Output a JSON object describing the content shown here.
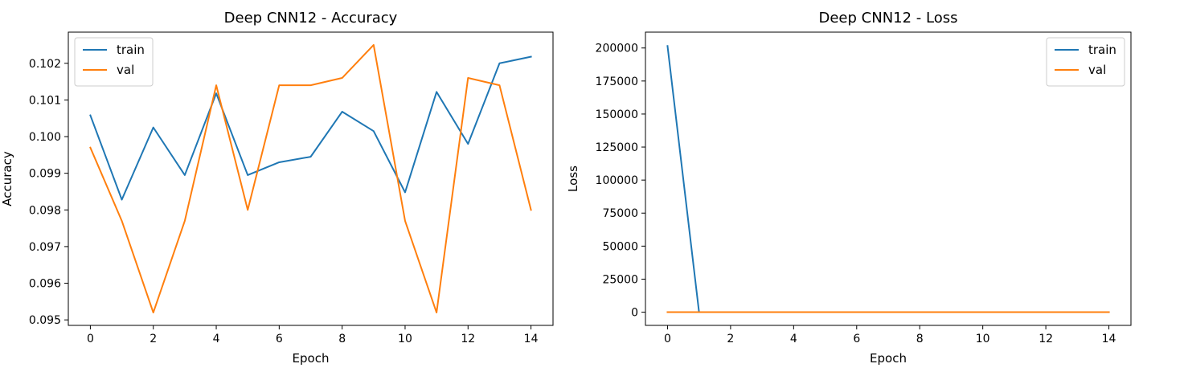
{
  "chart_data": [
    {
      "type": "line",
      "title": "Deep CNN12 - Accuracy",
      "xlabel": "Epoch",
      "ylabel": "Accuracy",
      "x": [
        0,
        1,
        2,
        3,
        4,
        5,
        6,
        7,
        8,
        9,
        10,
        11,
        12,
        13,
        14
      ],
      "xlim": [
        -0.7,
        14.7
      ],
      "ylim": [
        0.09485,
        0.10285
      ],
      "xticks": [
        0,
        2,
        4,
        6,
        8,
        10,
        12,
        14
      ],
      "yticks": [
        0.095,
        0.096,
        0.097,
        0.098,
        0.099,
        0.1,
        0.101,
        0.102
      ],
      "ytick_labels": [
        "0.095",
        "0.096",
        "0.097",
        "0.098",
        "0.099",
        "0.100",
        "0.101",
        "0.102"
      ],
      "grid": false,
      "legend_position": "top-left",
      "series": [
        {
          "name": "train",
          "color": "#1f77b4",
          "values": [
            0.10058,
            0.09828,
            0.10025,
            0.09895,
            0.10118,
            0.09895,
            0.0993,
            0.09945,
            0.10068,
            0.10015,
            0.09848,
            0.10122,
            0.0998,
            0.102,
            0.10218
          ]
        },
        {
          "name": "val",
          "color": "#ff7f0e",
          "values": [
            0.0997,
            0.0977,
            0.0952,
            0.0977,
            0.1014,
            0.098,
            0.1014,
            0.1014,
            0.1016,
            0.1025,
            0.0977,
            0.0952,
            0.1016,
            0.1014,
            0.098
          ]
        }
      ]
    },
    {
      "type": "line",
      "title": "Deep CNN12 - Loss",
      "xlabel": "Epoch",
      "ylabel": "Loss",
      "x": [
        0,
        1,
        2,
        3,
        4,
        5,
        6,
        7,
        8,
        9,
        10,
        11,
        12,
        13,
        14
      ],
      "xlim": [
        -0.7,
        14.7
      ],
      "ylim": [
        -10000,
        212000
      ],
      "xticks": [
        0,
        2,
        4,
        6,
        8,
        10,
        12,
        14
      ],
      "yticks": [
        0,
        25000,
        50000,
        75000,
        100000,
        125000,
        150000,
        175000,
        200000
      ],
      "ytick_labels": [
        "0",
        "25000",
        "50000",
        "75000",
        "100000",
        "125000",
        "150000",
        "175000",
        "200000"
      ],
      "grid": false,
      "legend_position": "top-right",
      "series": [
        {
          "name": "train",
          "color": "#1f77b4",
          "values": [
            201500,
            2.3,
            2.3,
            2.3,
            2.3,
            2.3,
            2.3,
            2.3,
            2.3,
            2.3,
            2.3,
            2.3,
            2.3,
            2.3,
            2.3
          ]
        },
        {
          "name": "val",
          "color": "#ff7f0e",
          "values": [
            2.3,
            2.3,
            2.3,
            2.3,
            2.3,
            2.3,
            2.3,
            2.3,
            2.3,
            2.3,
            2.3,
            2.3,
            2.3,
            2.3,
            2.3
          ]
        }
      ]
    }
  ]
}
